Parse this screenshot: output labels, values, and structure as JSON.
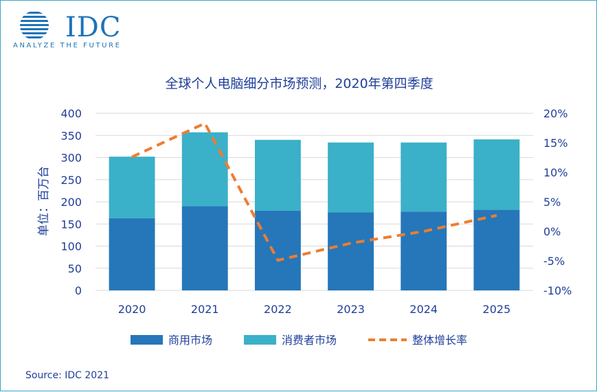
{
  "logo": {
    "name": "IDC",
    "tagline": "ANALYZE THE FUTURE"
  },
  "chart_data": {
    "type": "bar",
    "stacked": true,
    "title": "全球个人电脑细分市场预测，2020年第四季度",
    "ylabel": "单位：百万台",
    "ylim": [
      0,
      400
    ],
    "y2lim": [
      -10,
      20
    ],
    "yticks": [
      "0",
      "50",
      "100",
      "150",
      "200",
      "250",
      "300",
      "350",
      "400"
    ],
    "y2ticks": [
      "-10%",
      "-5%",
      "0%",
      "5%",
      "10%",
      "15%",
      "20%"
    ],
    "categories": [
      "2020",
      "2021",
      "2022",
      "2023",
      "2024",
      "2025"
    ],
    "series": [
      {
        "name": "商用市场",
        "type": "bar",
        "values": [
          163,
          190,
          180,
          176,
          178,
          182
        ]
      },
      {
        "name": "消费者市场",
        "type": "bar",
        "values": [
          139,
          167,
          160,
          158,
          156,
          159
        ]
      },
      {
        "name": "整体增长率",
        "type": "line",
        "axis": "right",
        "style": "dashed",
        "values": [
          12.6,
          18.3,
          -4.9,
          -2.0,
          0.0,
          2.7
        ]
      }
    ],
    "colors": {
      "commercial": "#2577b9",
      "consumer": "#3bb0c9",
      "growth": "#ed7d31",
      "grid": "#d9d9d9",
      "text": "#1f3f9a"
    },
    "legend": "bottom",
    "grid": true
  },
  "footer": {
    "source": "Source: IDC 2021"
  }
}
